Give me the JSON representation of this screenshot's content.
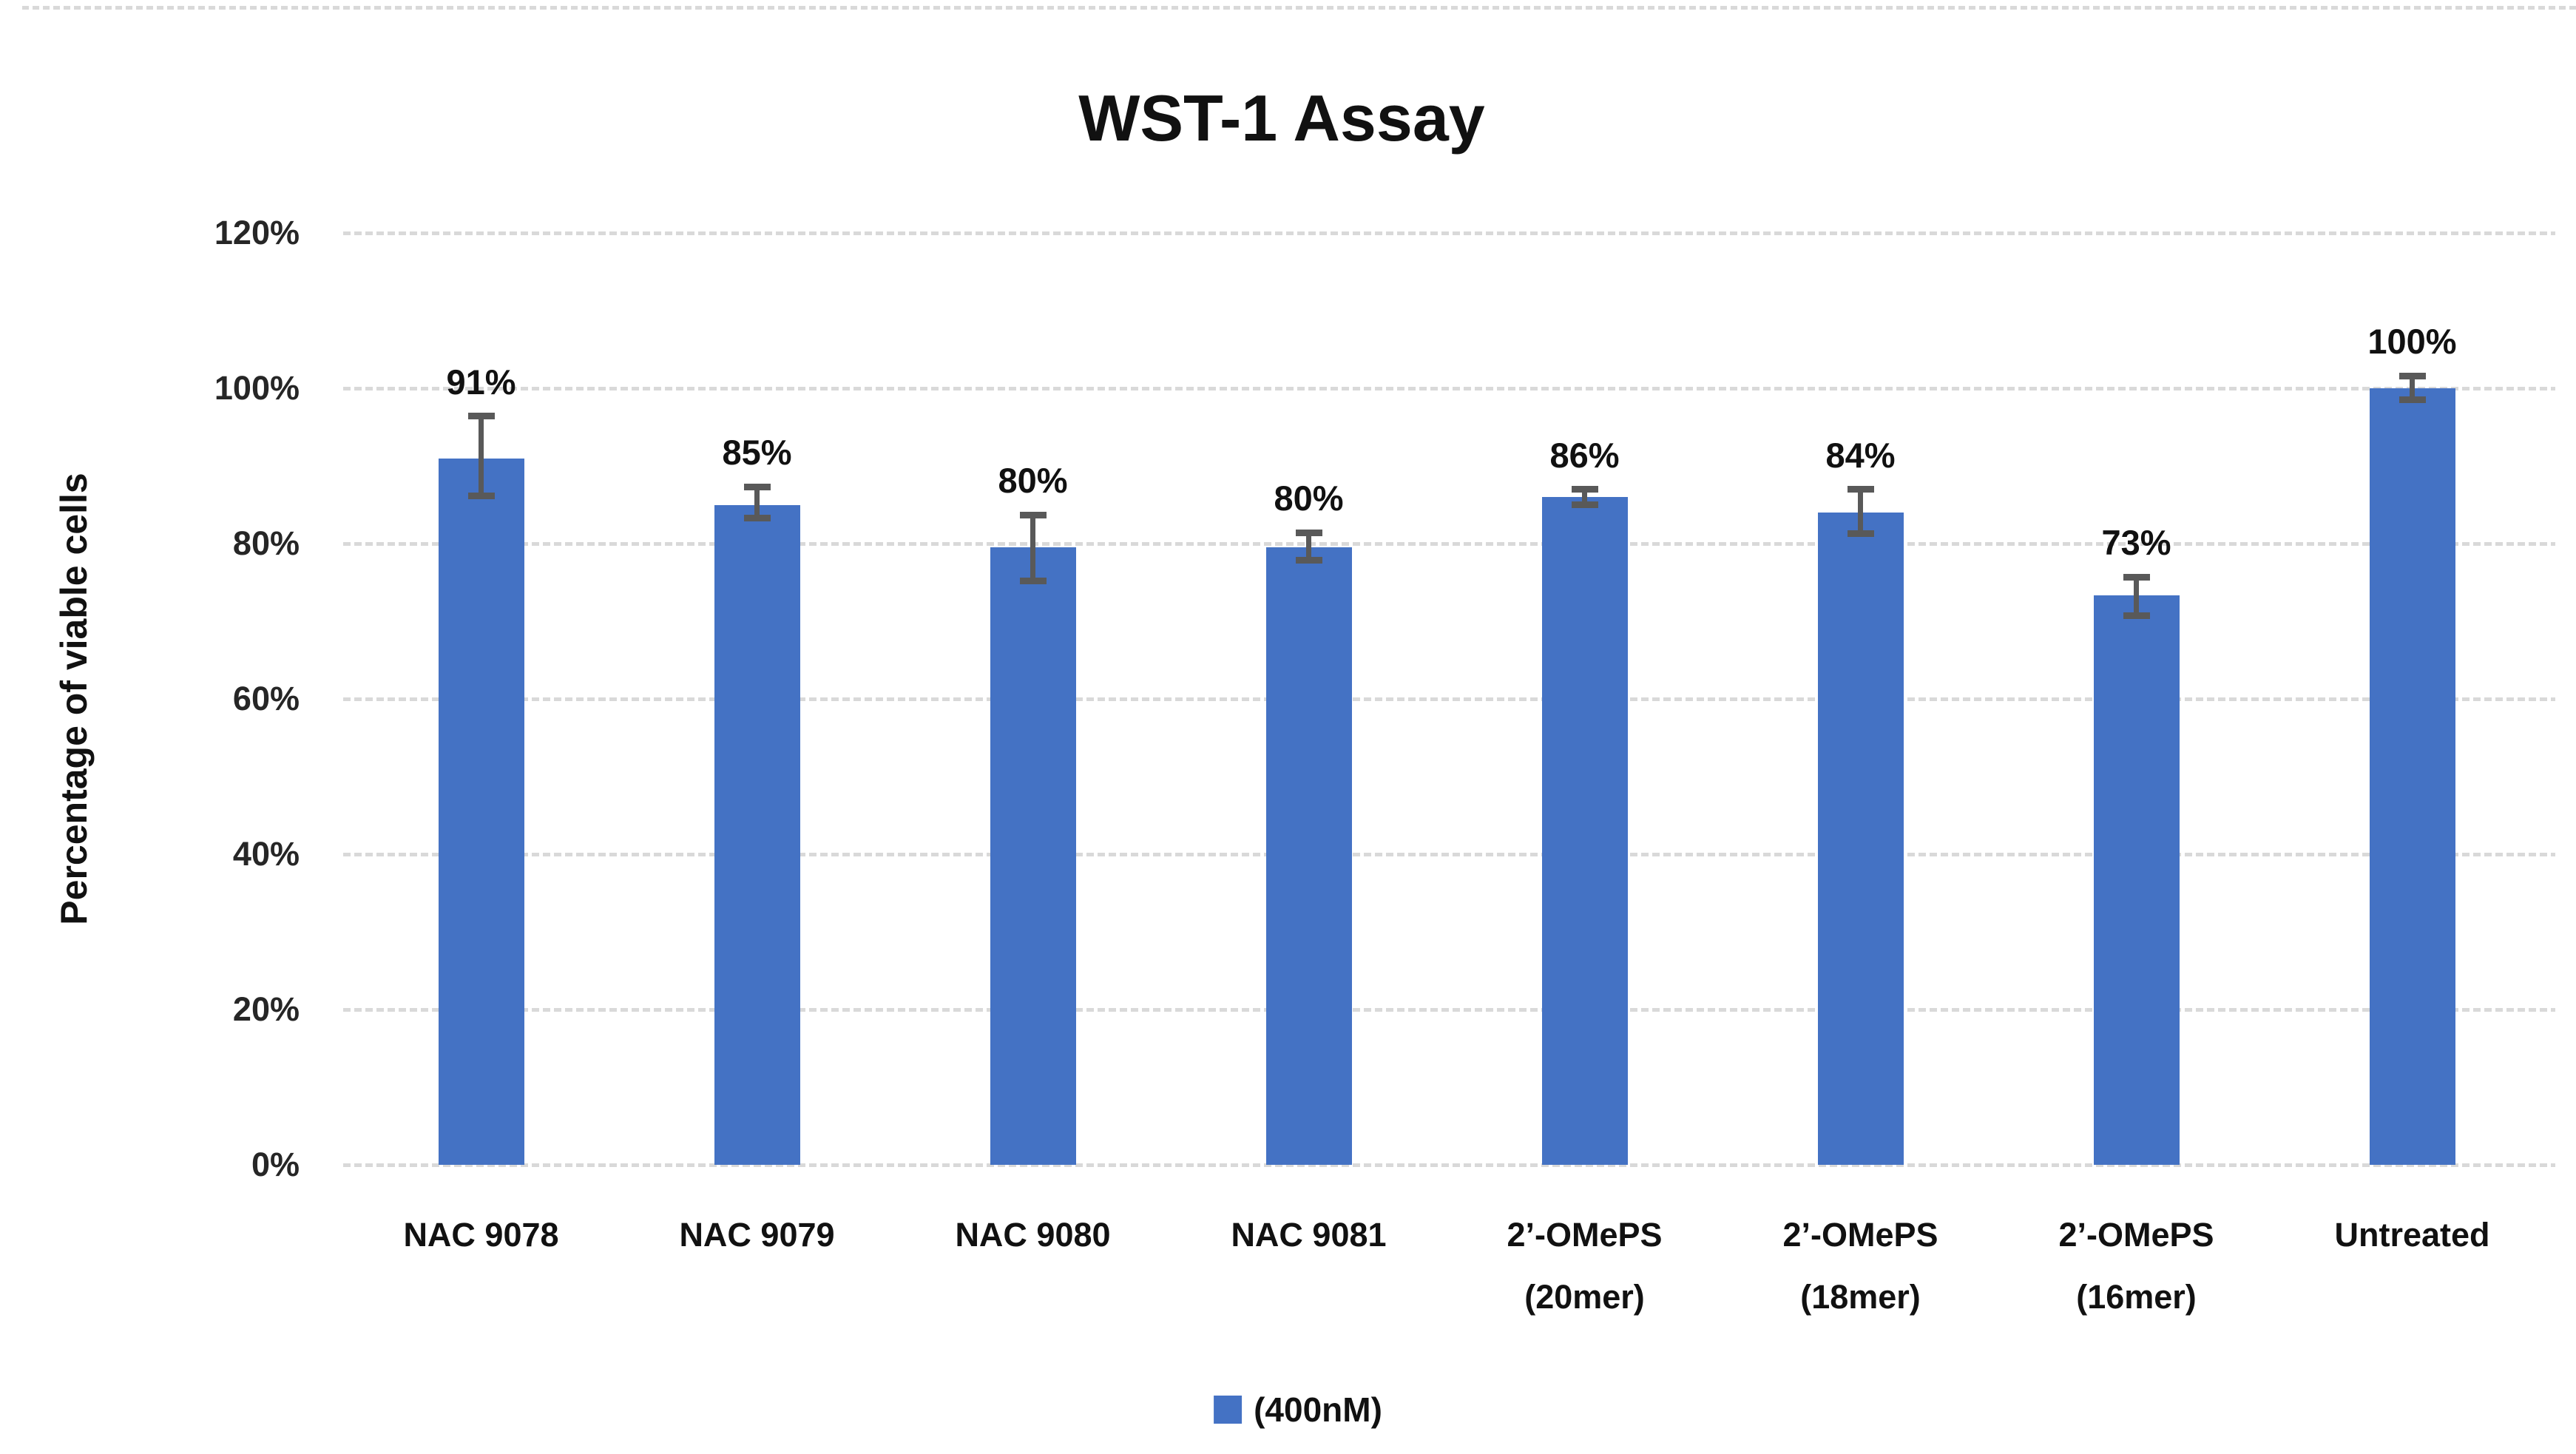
{
  "chart_data": {
    "type": "bar",
    "title": "WST-1 Assay",
    "ylabel": "Percentage of viable cells",
    "xlabel": "",
    "categories": [
      "NAC 9078",
      "NAC 9079",
      "NAC 9080",
      "NAC 9081",
      "2’-OMePS (20mer)",
      "2’-OMePS (18mer)",
      "2’-OMePS (16mer)",
      "Untreated"
    ],
    "categories_lines": [
      [
        "NAC 9078"
      ],
      [
        "NAC 9079"
      ],
      [
        "NAC 9080"
      ],
      [
        "NAC 9081"
      ],
      [
        "2’-OMePS",
        "(20mer)"
      ],
      [
        "2’-OMePS",
        "(18mer)"
      ],
      [
        "2’-OMePS",
        "(16mer)"
      ],
      [
        "Untreated"
      ]
    ],
    "series": [
      {
        "name": "(400nM)",
        "values": [
          91,
          85,
          79.5,
          79.5,
          86,
          84,
          73.3,
          100
        ],
        "data_labels": [
          "91%",
          "85%",
          "80%",
          "80%",
          "86%",
          "84%",
          "73%",
          "100%"
        ],
        "error_plus": [
          5.4,
          2.3,
          4.2,
          1.9,
          1.0,
          3.0,
          2.4,
          1.6
        ],
        "error_minus": [
          4.9,
          1.7,
          4.3,
          1.6,
          1.0,
          2.7,
          2.6,
          1.5
        ]
      }
    ],
    "ylim": [
      0,
      120
    ],
    "ytick_step": 20,
    "ytick_labels": [
      "0%",
      "20%",
      "40%",
      "60%",
      "80%",
      "100%",
      "120%"
    ],
    "grid": true,
    "legend": {
      "label": "(400nM)",
      "position": "bottom"
    },
    "colors": {
      "bar": "#4472C4",
      "error_bar": "#595959",
      "gridline": "#D9D9D9",
      "text": "#111111"
    }
  }
}
